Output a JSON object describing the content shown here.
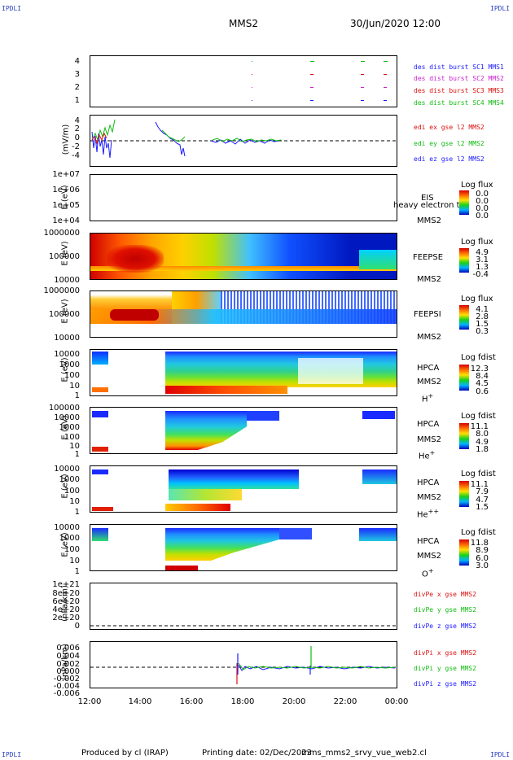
{
  "corner_marks": [
    "IPDLI",
    "IPDLI",
    "IPDLI",
    "IPDLI"
  ],
  "header": {
    "title": "MMS2",
    "datetime": "30/Jun/2020 12:00"
  },
  "x_axis": {
    "ticks": [
      "12:00",
      "14:00",
      "16:00",
      "18:00",
      "20:00",
      "22:00",
      "00:00"
    ]
  },
  "panels": {
    "burst": {
      "yticks": [
        "4",
        "3",
        "2",
        "1"
      ],
      "legend": [
        {
          "text": "des dist burst SC1 MMS1",
          "color": "#1a1aff"
        },
        {
          "text": "des dist burst SC2 MMS2",
          "color": "#cc22cc"
        },
        {
          "text": "des dist burst SC3 MMS3",
          "color": "#dd1111"
        },
        {
          "text": "des dist burst SC4 MMS4",
          "color": "#11bb11"
        }
      ]
    },
    "edi": {
      "ylabel": "(mV/m)",
      "yticks": [
        "4",
        "2",
        "0",
        "-2",
        "-4"
      ],
      "legend": [
        {
          "text": "edi ex gse l2 MMS2",
          "color": "#dd1111"
        },
        {
          "text": "edi ey gse l2 MMS2",
          "color": "#11bb11"
        },
        {
          "text": "edi ez gse l2 MMS2",
          "color": "#1a1aff"
        }
      ]
    },
    "eis": {
      "ylabel": "E (eV)",
      "yticks": [
        "1e+07",
        "1e+06",
        "1e+05",
        "1e+04"
      ],
      "instrument": "EIS",
      "overlay": "heavy electron to",
      "sc": "MMS2",
      "cbtitle": "Log flux",
      "cbvals": [
        "0.0",
        "0.0",
        "0.0",
        "0.0"
      ]
    },
    "feepse": {
      "ylabel": "E (eV)",
      "yticks": [
        "1000000",
        "100000",
        "10000"
      ],
      "instrument": "FEEPSE",
      "sc": "MMS2",
      "cbtitle": "Log flux",
      "cbvals": [
        "4.9",
        "3.1",
        "1.3",
        "-0.4"
      ]
    },
    "feepsi": {
      "ylabel": "E (eV)",
      "yticks": [
        "1000000",
        "100000",
        "10000"
      ],
      "instrument": "FEEPSI",
      "sc": "MMS2",
      "cbtitle": "Log flux",
      "cbvals": [
        "4.1",
        "2.8",
        "1.5",
        "0.3"
      ]
    },
    "hpca_h": {
      "ylabel": "E (eV)",
      "yticks": [
        "10000",
        "1000",
        "100",
        "10",
        "1"
      ],
      "instrument": "HPCA",
      "sc": "MMS2",
      "species": "H",
      "charge": "+",
      "cbtitle": "Log fdist",
      "cbvals": [
        "12.3",
        "8.4",
        "4.5",
        "0.6"
      ]
    },
    "hpca_he": {
      "ylabel": "E (eV)",
      "yticks": [
        "10000",
        "1000",
        "100",
        "10",
        "1"
      ],
      "instrument": "HPCA",
      "sc": "MMS2",
      "species": "He",
      "charge": "+",
      "cbtitle": "Log fdist",
      "cbvals": [
        "11.1",
        "8.0",
        "4.9",
        "1.8"
      ]
    },
    "hpca_hepp": {
      "ylabel": "E (eV)",
      "yticks": [
        "10000",
        "1000",
        "100",
        "10",
        "1"
      ],
      "instrument": "HPCA",
      "sc": "MMS2",
      "species": "He",
      "charge": "++",
      "cbtitle": "Log fdist",
      "cbvals": [
        "11.1",
        "7.9",
        "4.7",
        "1.5"
      ]
    },
    "hpca_o": {
      "ylabel": "E (eV)",
      "yticks": [
        "10000",
        "1000",
        "100",
        "10",
        "1"
      ],
      "instrument": "HPCA",
      "sc": "MMS2",
      "species": "O",
      "charge": "+",
      "cbtitle": "Log fdist",
      "cbvals": [
        "11.8",
        "8.9",
        "6.0",
        "3.0"
      ]
    },
    "divpe": {
      "ylabel": "(nPa/km)",
      "yticks": [
        "1e+21",
        "8e+20",
        "6e+20",
        "4e+20",
        "2e+20",
        "0"
      ],
      "legend": [
        {
          "text": "divPe x gse MMS2",
          "color": "#dd1111"
        },
        {
          "text": "divPe y gse MMS2",
          "color": "#11bb11"
        },
        {
          "text": "divPe z gse MMS2",
          "color": "#1a1aff"
        }
      ]
    },
    "divpi": {
      "ylabel": "(nPa/km)",
      "yticks": [
        "0.006",
        "0.004",
        "0.002",
        "0.000",
        "-0.002",
        "-0.004",
        "-0.006"
      ],
      "legend": [
        {
          "text": "divPi x gse MMS2",
          "color": "#dd1111"
        },
        {
          "text": "divPi y gse MMS2",
          "color": "#11bb11"
        },
        {
          "text": "divPi z gse MMS2",
          "color": "#1a1aff"
        }
      ]
    }
  },
  "footer": {
    "produced": "Produced by cl (IRAP)",
    "printing": "Printing date: 02/Dec/2023",
    "file": "mms_mms2_srvy_vue_web2.cl"
  }
}
